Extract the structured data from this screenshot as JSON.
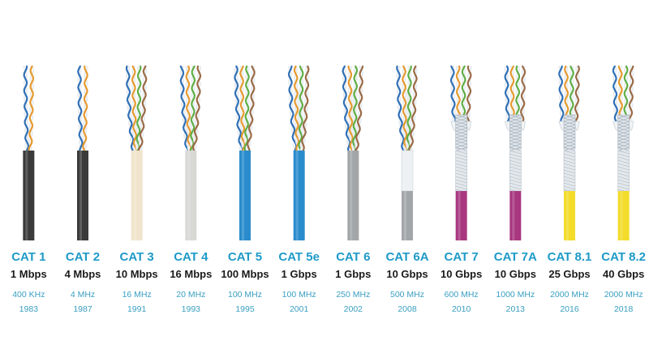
{
  "cables": [
    {
      "name": "CAT 1",
      "speed": "1 Mbps",
      "frequency": "400 KHz",
      "year": "1983",
      "jacket_color": "#3b3b3b",
      "pairs": 2,
      "shielded": false,
      "spline": false
    },
    {
      "name": "CAT 2",
      "speed": "4 Mbps",
      "frequency": "4 MHz",
      "year": "1987",
      "jacket_color": "#3b3b3b",
      "pairs": 2,
      "shielded": false,
      "spline": false
    },
    {
      "name": "CAT 3",
      "speed": "10 Mbps",
      "frequency": "16 MHz",
      "year": "1991",
      "jacket_color": "#f1e4cc",
      "pairs": 4,
      "shielded": false,
      "spline": false
    },
    {
      "name": "CAT 4",
      "speed": "16 Mbps",
      "frequency": "20 MHz",
      "year": "1993",
      "jacket_color": "#d8d8d4",
      "pairs": 4,
      "shielded": false,
      "spline": false
    },
    {
      "name": "CAT 5",
      "speed": "100 Mbps",
      "frequency": "100 MHz",
      "year": "1995",
      "jacket_color": "#2a8ccc",
      "pairs": 4,
      "shielded": false,
      "spline": false
    },
    {
      "name": "CAT 5e",
      "speed": "1 Gbps",
      "frequency": "100 MHz",
      "year": "2001",
      "jacket_color": "#2a8ccc",
      "pairs": 4,
      "shielded": false,
      "spline": true
    },
    {
      "name": "CAT 6",
      "speed": "1 Gbps",
      "frequency": "250 MHz",
      "year": "2002",
      "jacket_color": "#a3a6a8",
      "pairs": 4,
      "shielded": false,
      "spline": true
    },
    {
      "name": "CAT 6A",
      "speed": "10 Gbps",
      "frequency": "500 MHz",
      "year": "2008",
      "jacket_color": "#a3a6a8",
      "pairs": 4,
      "shielded": false,
      "spline": true
    },
    {
      "name": "CAT 7",
      "speed": "10 Gbps",
      "frequency": "600 MHz",
      "year": "2010",
      "jacket_color": "#a8377f",
      "pairs": 4,
      "shielded": true,
      "spline": false
    },
    {
      "name": "CAT 7A",
      "speed": "10 Gbps",
      "frequency": "1000 MHz",
      "year": "2013",
      "jacket_color": "#a8377f",
      "pairs": 4,
      "shielded": true,
      "spline": false
    },
    {
      "name": "CAT 8.1",
      "speed": "25 Gbps",
      "frequency": "2000 MHz",
      "year": "2016",
      "jacket_color": "#f3dc2a",
      "pairs": 4,
      "shielded": true,
      "spline": false
    },
    {
      "name": "CAT 8.2",
      "speed": "40 Gbps",
      "frequency": "2000 MHz",
      "year": "2018",
      "jacket_color": "#f3dc2a",
      "pairs": 4,
      "shielded": true,
      "spline": false
    }
  ],
  "pair_colors": [
    "#2f6fb5",
    "#e59a2f",
    "#5fae45",
    "#9a6a45"
  ]
}
